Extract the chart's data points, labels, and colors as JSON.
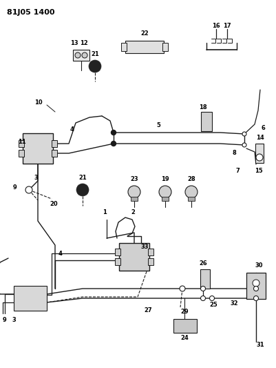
{
  "title": "81J05 1400",
  "bg_color": "#ffffff",
  "lc": "#1a1a1a",
  "figsize": [
    4.02,
    5.33
  ],
  "dpi": 100
}
